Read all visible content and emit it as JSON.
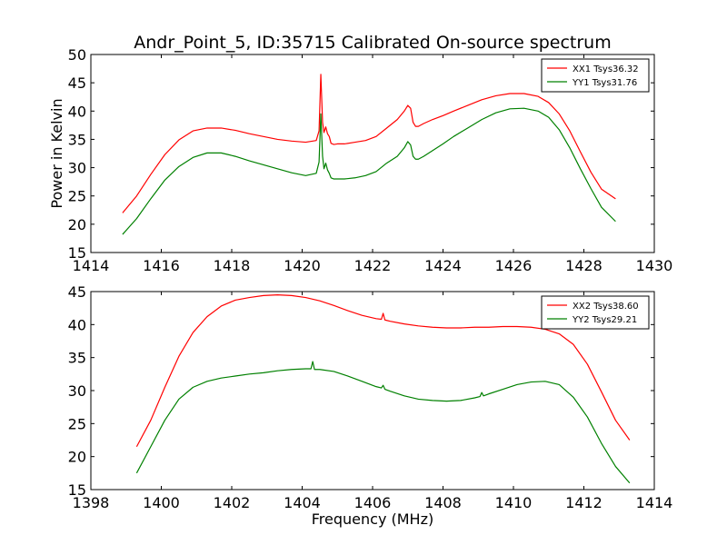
{
  "figure": {
    "title": "Andr_Point_5, ID:35715 Calibrated On-source spectrum",
    "ylabel": "Power in Kelvin",
    "xlabel": "Frequency (MHz)"
  },
  "chart_data": [
    {
      "type": "line",
      "title": "Andr_Point_5, ID:35715 Calibrated On-source spectrum",
      "ylabel": "Power in Kelvin",
      "xlabel": "",
      "xlim": [
        1414,
        1430
      ],
      "ylim": [
        15,
        50
      ],
      "xticks": [
        1414,
        1416,
        1418,
        1420,
        1422,
        1424,
        1426,
        1428,
        1430
      ],
      "yticks": [
        15,
        20,
        25,
        30,
        35,
        40,
        45,
        50
      ],
      "grid": false,
      "legend_position": "top-right",
      "series": [
        {
          "name": "XX1 Tsys36.32",
          "color": "#ff0000",
          "x": [
            1414.9,
            1415.3,
            1415.7,
            1416.1,
            1416.5,
            1416.9,
            1417.3,
            1417.7,
            1418.1,
            1418.5,
            1418.9,
            1419.3,
            1419.7,
            1420.1,
            1420.4,
            1420.48,
            1420.53,
            1420.58,
            1420.62,
            1420.67,
            1420.72,
            1420.77,
            1420.82,
            1420.9,
            1421.0,
            1421.2,
            1421.5,
            1421.8,
            1422.1,
            1422.4,
            1422.7,
            1422.9,
            1423.0,
            1423.08,
            1423.15,
            1423.22,
            1423.3,
            1423.45,
            1423.7,
            1424.0,
            1424.3,
            1424.7,
            1425.1,
            1425.5,
            1425.9,
            1426.3,
            1426.7,
            1427.0,
            1427.3,
            1427.6,
            1427.9,
            1428.2,
            1428.5,
            1428.9
          ],
          "y": [
            22.0,
            25.0,
            28.8,
            32.3,
            34.9,
            36.5,
            37.0,
            37.0,
            36.6,
            36.0,
            35.5,
            35.0,
            34.7,
            34.5,
            34.8,
            36.5,
            46.5,
            38.0,
            36.2,
            37.2,
            36.0,
            35.5,
            34.3,
            34.1,
            34.2,
            34.2,
            34.5,
            34.8,
            35.5,
            37.0,
            38.5,
            40.0,
            41.0,
            40.5,
            38.0,
            37.3,
            37.3,
            37.8,
            38.5,
            39.2,
            40.0,
            41.0,
            42.0,
            42.7,
            43.1,
            43.1,
            42.6,
            41.5,
            39.5,
            36.5,
            32.8,
            29.2,
            26.2,
            24.5
          ]
        },
        {
          "name": "YY1 Tsys31.76",
          "color": "#008000",
          "x": [
            1414.9,
            1415.3,
            1415.7,
            1416.1,
            1416.5,
            1416.9,
            1417.3,
            1417.7,
            1418.1,
            1418.5,
            1418.9,
            1419.3,
            1419.7,
            1420.1,
            1420.4,
            1420.48,
            1420.53,
            1420.58,
            1420.62,
            1420.67,
            1420.72,
            1420.77,
            1420.82,
            1420.9,
            1421.0,
            1421.2,
            1421.5,
            1421.8,
            1422.1,
            1422.4,
            1422.7,
            1422.9,
            1423.0,
            1423.08,
            1423.15,
            1423.22,
            1423.3,
            1423.45,
            1423.7,
            1424.0,
            1424.3,
            1424.7,
            1425.1,
            1425.5,
            1425.9,
            1426.3,
            1426.7,
            1427.0,
            1427.3,
            1427.6,
            1427.9,
            1428.2,
            1428.5,
            1428.9
          ],
          "y": [
            18.2,
            21.0,
            24.5,
            27.8,
            30.2,
            31.8,
            32.6,
            32.6,
            32.0,
            31.2,
            30.5,
            29.8,
            29.1,
            28.6,
            29.0,
            31.0,
            39.5,
            32.0,
            29.8,
            30.8,
            29.6,
            29.0,
            28.2,
            28.0,
            28.0,
            28.0,
            28.2,
            28.6,
            29.3,
            30.8,
            32.0,
            33.5,
            34.6,
            34.0,
            32.0,
            31.5,
            31.5,
            32.0,
            33.0,
            34.2,
            35.5,
            37.0,
            38.5,
            39.7,
            40.4,
            40.5,
            40.0,
            38.9,
            36.7,
            33.5,
            29.8,
            26.3,
            23.0,
            20.5
          ]
        }
      ]
    },
    {
      "type": "line",
      "title": "",
      "ylabel": "",
      "xlabel": "Frequency (MHz)",
      "xlim": [
        1398,
        1414
      ],
      "ylim": [
        15,
        45
      ],
      "xticks": [
        1398,
        1400,
        1402,
        1404,
        1406,
        1408,
        1410,
        1412,
        1414
      ],
      "yticks": [
        15,
        20,
        25,
        30,
        35,
        40,
        45
      ],
      "grid": false,
      "legend_position": "top-right",
      "series": [
        {
          "name": "XX2 Tsys38.60",
          "color": "#ff0000",
          "x": [
            1399.3,
            1399.7,
            1400.1,
            1400.5,
            1400.9,
            1401.3,
            1401.7,
            1402.1,
            1402.5,
            1402.9,
            1403.3,
            1403.7,
            1404.1,
            1404.5,
            1404.9,
            1405.3,
            1405.7,
            1406.1,
            1406.25,
            1406.3,
            1406.35,
            1406.5,
            1406.9,
            1407.3,
            1407.7,
            1408.1,
            1408.5,
            1408.9,
            1409.3,
            1409.7,
            1410.1,
            1410.5,
            1410.9,
            1411.3,
            1411.7,
            1412.1,
            1412.5,
            1412.9,
            1413.3
          ],
          "y": [
            21.5,
            25.5,
            30.5,
            35.2,
            38.8,
            41.2,
            42.8,
            43.7,
            44.1,
            44.4,
            44.5,
            44.4,
            44.1,
            43.6,
            42.9,
            42.1,
            41.4,
            40.9,
            40.8,
            41.7,
            40.7,
            40.5,
            40.1,
            39.8,
            39.6,
            39.5,
            39.5,
            39.6,
            39.6,
            39.7,
            39.7,
            39.6,
            39.3,
            38.6,
            37.0,
            34.0,
            29.8,
            25.5,
            22.5
          ]
        },
        {
          "name": "YY2 Tsys29.21",
          "color": "#008000",
          "x": [
            1399.3,
            1399.7,
            1400.1,
            1400.5,
            1400.9,
            1401.3,
            1401.7,
            1402.1,
            1402.5,
            1402.9,
            1403.3,
            1403.7,
            1404.1,
            1404.25,
            1404.3,
            1404.35,
            1404.5,
            1404.9,
            1405.3,
            1405.7,
            1406.1,
            1406.25,
            1406.3,
            1406.35,
            1406.5,
            1406.9,
            1407.3,
            1407.7,
            1408.1,
            1408.5,
            1408.9,
            1409.05,
            1409.1,
            1409.15,
            1409.3,
            1409.7,
            1410.1,
            1410.5,
            1410.9,
            1411.3,
            1411.7,
            1412.1,
            1412.5,
            1412.9,
            1413.3
          ],
          "y": [
            17.5,
            21.5,
            25.5,
            28.7,
            30.5,
            31.4,
            31.9,
            32.2,
            32.5,
            32.7,
            33.0,
            33.2,
            33.3,
            33.3,
            34.4,
            33.2,
            33.2,
            32.9,
            32.2,
            31.4,
            30.6,
            30.4,
            30.8,
            30.2,
            29.9,
            29.2,
            28.7,
            28.5,
            28.4,
            28.5,
            28.9,
            29.1,
            29.7,
            29.2,
            29.5,
            30.2,
            30.9,
            31.3,
            31.4,
            30.9,
            29.0,
            26.0,
            22.0,
            18.5,
            16.0
          ]
        }
      ]
    }
  ]
}
